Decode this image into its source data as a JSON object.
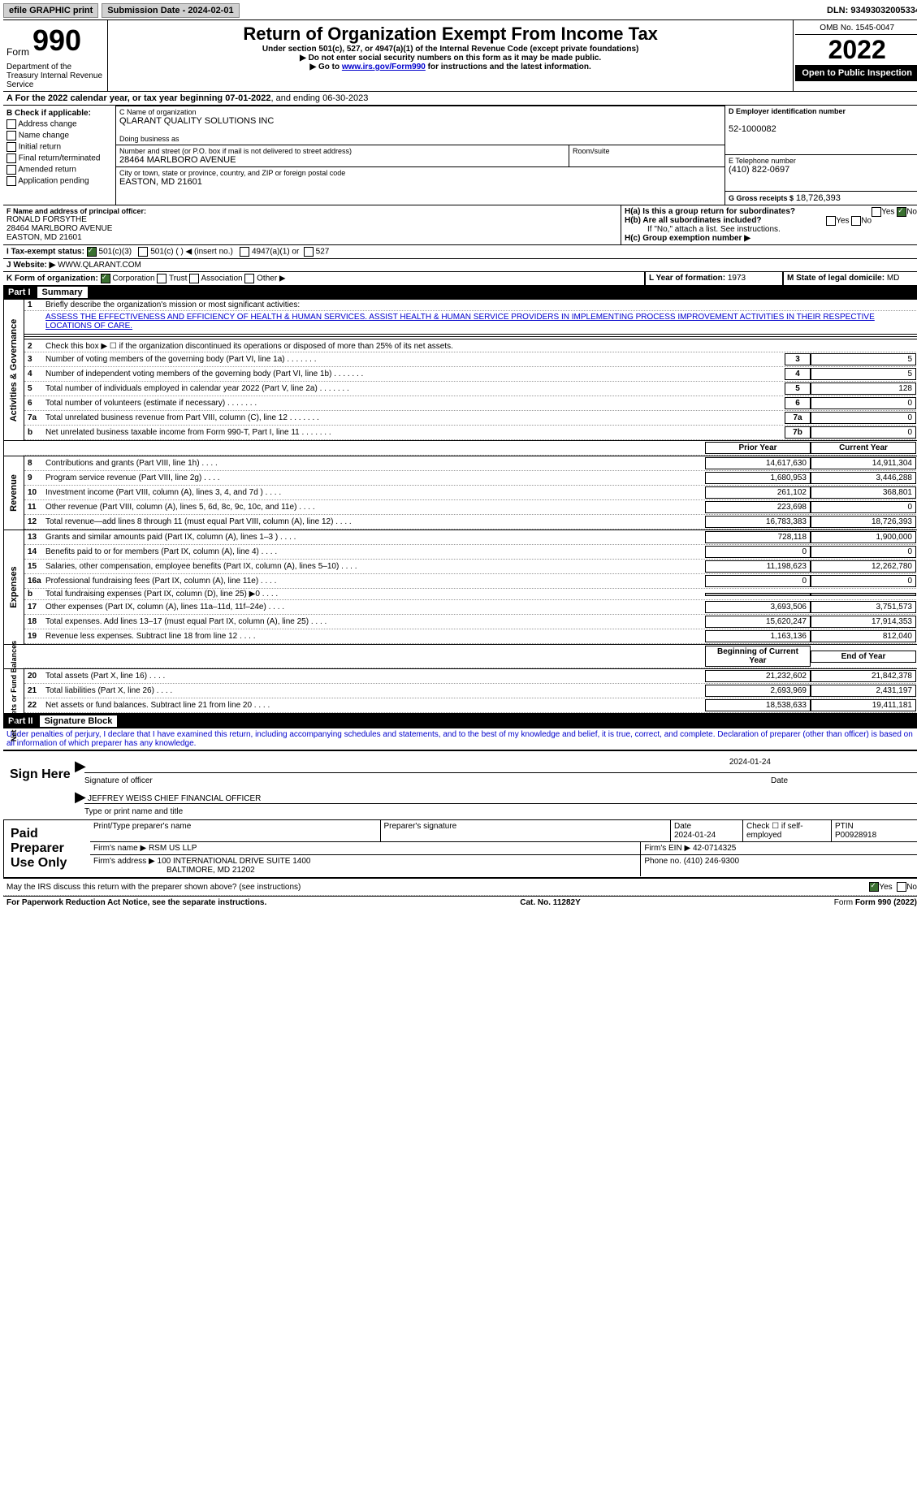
{
  "topbar": {
    "efile": "efile GRAPHIC print",
    "submission": "Submission Date - 2024-02-01",
    "dln": "DLN: 93493032005334"
  },
  "header": {
    "form": "Form",
    "num": "990",
    "title": "Return of Organization Exempt From Income Tax",
    "sub1": "Under section 501(c), 527, or 4947(a)(1) of the Internal Revenue Code (except private foundations)",
    "sub2": "▶ Do not enter social security numbers on this form as it may be made public.",
    "sub3a": "▶ Go to ",
    "sub3link": "www.irs.gov/Form990",
    "sub3b": " for instructions and the latest information.",
    "dept": "Department of the Treasury Internal Revenue Service",
    "omb": "OMB No. 1545-0047",
    "year": "2022",
    "inspect": "Open to Public Inspection"
  },
  "period": {
    "a": "A For the 2022 calendar year, or tax year beginning 07-01-2022",
    "b": ", and ending 06-30-2023"
  },
  "B": {
    "hdr": "B Check if applicable:",
    "items": [
      "Address change",
      "Name change",
      "Initial return",
      "Final return/terminated",
      "Amended return",
      "Application pending"
    ]
  },
  "C": {
    "nameLbl": "C Name of organization",
    "name": "QLARANT QUALITY SOLUTIONS INC",
    "dbaLbl": "Doing business as",
    "dba": "",
    "addrLbl": "Number and street (or P.O. box if mail is not delivered to street address)",
    "addr": "28464 MARLBORO AVENUE",
    "roomLbl": "Room/suite",
    "cityLbl": "City or town, state or province, country, and ZIP or foreign postal code",
    "city": "EASTON, MD  21601"
  },
  "D": {
    "lbl": "D Employer identification number",
    "val": "52-1000082"
  },
  "E": {
    "lbl": "E Telephone number",
    "val": "(410) 822-0697"
  },
  "G": {
    "lbl": "G Gross receipts $",
    "val": "18,726,393"
  },
  "F": {
    "lbl": "F  Name and address of principal officer:",
    "name": "RONALD FORSYTHE",
    "addr": "28464 MARLBORO AVENUE",
    "city": "EASTON, MD  21601"
  },
  "H": {
    "a": "H(a)  Is this a group return for subordinates?",
    "b": "H(b)  Are all subordinates included?",
    "bnote": "If \"No,\" attach a list. See instructions.",
    "c": "H(c)  Group exemption number ▶",
    "yes": "Yes",
    "no": "No"
  },
  "I": {
    "lbl": "I  Tax-exempt status:",
    "c3": "501(c)(3)",
    "c": "501(c) (  ) ◀ (insert no.)",
    "a1": "4947(a)(1) or",
    "s527": "527"
  },
  "J": {
    "lbl": "J  Website: ▶",
    "val": "WWW.QLARANT.COM"
  },
  "K": {
    "lbl": "K Form of organization:",
    "corp": "Corporation",
    "trust": "Trust",
    "assoc": "Association",
    "other": "Other ▶"
  },
  "L": {
    "lbl": "L Year of formation:",
    "val": "1973"
  },
  "M": {
    "lbl": "M State of legal domicile:",
    "val": "MD"
  },
  "part1": {
    "hdr": "Part I",
    "title": "Summary"
  },
  "sectA": {
    "label": "Activities & Governance",
    "l1": "Briefly describe the organization's mission or most significant activities:",
    "mission": "ASSESS THE EFFECTIVENESS AND EFFICIENCY OF HEALTH & HUMAN SERVICES. ASSIST HEALTH & HUMAN SERVICE PROVIDERS IN IMPLEMENTING PROCESS IMPROVEMENT ACTIVITIES IN THEIR RESPECTIVE LOCATIONS OF CARE.",
    "l2": "Check this box ▶ ☐  if the organization discontinued its operations or disposed of more than 25% of its net assets.",
    "rows": [
      {
        "n": "3",
        "t": "Number of voting members of the governing body (Part VI, line 1a)",
        "box": "3",
        "v": "5"
      },
      {
        "n": "4",
        "t": "Number of independent voting members of the governing body (Part VI, line 1b)",
        "box": "4",
        "v": "5"
      },
      {
        "n": "5",
        "t": "Total number of individuals employed in calendar year 2022 (Part V, line 2a)",
        "box": "5",
        "v": "128"
      },
      {
        "n": "6",
        "t": "Total number of volunteers (estimate if necessary)",
        "box": "6",
        "v": "0"
      },
      {
        "n": "7a",
        "t": "Total unrelated business revenue from Part VIII, column (C), line 12",
        "box": "7a",
        "v": "0"
      },
      {
        "n": "b",
        "t": "Net unrelated business taxable income from Form 990-T, Part I, line 11",
        "box": "7b",
        "v": "0"
      }
    ]
  },
  "yrHdr": {
    "prior": "Prior Year",
    "curr": "Current Year"
  },
  "sectRev": {
    "label": "Revenue",
    "rows": [
      {
        "n": "8",
        "t": "Contributions and grants (Part VIII, line 1h)",
        "p": "14,617,630",
        "c": "14,911,304"
      },
      {
        "n": "9",
        "t": "Program service revenue (Part VIII, line 2g)",
        "p": "1,680,953",
        "c": "3,446,288"
      },
      {
        "n": "10",
        "t": "Investment income (Part VIII, column (A), lines 3, 4, and 7d )",
        "p": "261,102",
        "c": "368,801"
      },
      {
        "n": "11",
        "t": "Other revenue (Part VIII, column (A), lines 5, 6d, 8c, 9c, 10c, and 11e)",
        "p": "223,698",
        "c": "0"
      },
      {
        "n": "12",
        "t": "Total revenue—add lines 8 through 11 (must equal Part VIII, column (A), line 12)",
        "p": "16,783,383",
        "c": "18,726,393"
      }
    ]
  },
  "sectExp": {
    "label": "Expenses",
    "rows": [
      {
        "n": "13",
        "t": "Grants and similar amounts paid (Part IX, column (A), lines 1–3 )",
        "p": "728,118",
        "c": "1,900,000"
      },
      {
        "n": "14",
        "t": "Benefits paid to or for members (Part IX, column (A), line 4)",
        "p": "0",
        "c": "0"
      },
      {
        "n": "15",
        "t": "Salaries, other compensation, employee benefits (Part IX, column (A), lines 5–10)",
        "p": "11,198,623",
        "c": "12,262,780"
      },
      {
        "n": "16a",
        "t": "Professional fundraising fees (Part IX, column (A), line 11e)",
        "p": "0",
        "c": "0"
      },
      {
        "n": "b",
        "t": "Total fundraising expenses (Part IX, column (D), line 25) ▶0",
        "p": "",
        "c": "",
        "shade": true
      },
      {
        "n": "17",
        "t": "Other expenses (Part IX, column (A), lines 11a–11d, 11f–24e)",
        "p": "3,693,506",
        "c": "3,751,573"
      },
      {
        "n": "18",
        "t": "Total expenses. Add lines 13–17 (must equal Part IX, column (A), line 25)",
        "p": "15,620,247",
        "c": "17,914,353"
      },
      {
        "n": "19",
        "t": "Revenue less expenses. Subtract line 18 from line 12",
        "p": "1,163,136",
        "c": "812,040"
      }
    ]
  },
  "sectNet": {
    "label": "Net Assets or Fund Balances",
    "hdr": {
      "b": "Beginning of Current Year",
      "e": "End of Year"
    },
    "rows": [
      {
        "n": "20",
        "t": "Total assets (Part X, line 16)",
        "p": "21,232,602",
        "c": "21,842,378"
      },
      {
        "n": "21",
        "t": "Total liabilities (Part X, line 26)",
        "p": "2,693,969",
        "c": "2,431,197"
      },
      {
        "n": "22",
        "t": "Net assets or fund balances. Subtract line 21 from line 20",
        "p": "18,538,633",
        "c": "19,411,181"
      }
    ]
  },
  "part2": {
    "hdr": "Part II",
    "title": "Signature Block",
    "decl": "Under penalties of perjury, I declare that I have examined this return, including accompanying schedules and statements, and to the best of my knowledge and belief, it is true, correct, and complete. Declaration of preparer (other than officer) is based on all information of which preparer has any knowledge."
  },
  "sign": {
    "here": "Sign Here",
    "sigLbl": "Signature of officer",
    "dateLbl": "Date",
    "date": "2024-01-24",
    "name": "JEFFREY WEISS  CHIEF FINANCIAL OFFICER",
    "nameLbl": "Type or print name and title"
  },
  "paid": {
    "hdr": "Paid Preparer Use Only",
    "printLbl": "Print/Type preparer's name",
    "sigLbl": "Preparer's signature",
    "dateLbl": "Date",
    "date": "2024-01-24",
    "checkLbl": "Check ☐ if self-employed",
    "ptinLbl": "PTIN",
    "ptin": "P00928918",
    "firmLbl": "Firm's name   ▶",
    "firm": "RSM US LLP",
    "einLbl": "Firm's EIN ▶",
    "ein": "42-0714325",
    "addrLbl": "Firm's address ▶",
    "addr": "100 INTERNATIONAL DRIVE SUITE 1400",
    "city": "BALTIMORE, MD  21202",
    "phoneLbl": "Phone no.",
    "phone": "(410) 246-9300"
  },
  "discuss": {
    "q": "May the IRS discuss this return with the preparer shown above? (see instructions)",
    "yes": "Yes",
    "no": "No"
  },
  "footer": {
    "pra": "For Paperwork Reduction Act Notice, see the separate instructions.",
    "cat": "Cat. No. 11282Y",
    "form": "Form 990 (2022)"
  }
}
